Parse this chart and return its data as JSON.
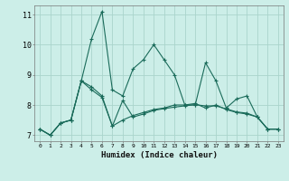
{
  "xlabel": "Humidex (Indice chaleur)",
  "bg_color": "#cceee8",
  "grid_color": "#aad4cc",
  "line_color": "#1a6b5a",
  "xlim": [
    -0.5,
    23.5
  ],
  "ylim": [
    6.8,
    11.3
  ],
  "yticks": [
    7,
    8,
    9,
    10,
    11
  ],
  "xticks": [
    0,
    1,
    2,
    3,
    4,
    5,
    6,
    7,
    8,
    9,
    10,
    11,
    12,
    13,
    14,
    15,
    16,
    17,
    18,
    19,
    20,
    21,
    22,
    23
  ],
  "series1": {
    "x": [
      0,
      1,
      2,
      3,
      4,
      5,
      6,
      7,
      8,
      9,
      10,
      11,
      12,
      13,
      14,
      15,
      16,
      17,
      18,
      19,
      20,
      21,
      22,
      23
    ],
    "y": [
      7.2,
      7.0,
      7.4,
      7.5,
      8.8,
      10.2,
      11.1,
      8.5,
      8.3,
      9.2,
      9.5,
      10.0,
      9.5,
      9.0,
      8.0,
      8.0,
      9.4,
      8.8,
      7.9,
      8.2,
      8.3,
      7.6,
      7.2,
      7.2
    ]
  },
  "series2": {
    "x": [
      0,
      1,
      2,
      3,
      4,
      5,
      6,
      7,
      8,
      9,
      10,
      11,
      12,
      13,
      14,
      15,
      16,
      17,
      18,
      19,
      20,
      21,
      22,
      23
    ],
    "y": [
      7.2,
      7.0,
      7.4,
      7.5,
      8.8,
      8.6,
      8.3,
      7.3,
      7.5,
      7.65,
      7.75,
      7.85,
      7.9,
      8.0,
      8.0,
      8.05,
      7.9,
      8.0,
      7.85,
      7.75,
      7.7,
      7.6,
      7.2,
      7.2
    ]
  },
  "series3": {
    "x": [
      0,
      1,
      2,
      3,
      4,
      5,
      6,
      7,
      8,
      9,
      10,
      11,
      12,
      13,
      14,
      15,
      16,
      17,
      18,
      19,
      20,
      21,
      22,
      23
    ],
    "y": [
      7.2,
      7.0,
      7.4,
      7.5,
      8.8,
      8.5,
      8.25,
      7.3,
      8.15,
      7.6,
      7.7,
      7.82,
      7.88,
      7.93,
      7.97,
      8.01,
      7.97,
      7.97,
      7.87,
      7.77,
      7.73,
      7.6,
      7.2,
      7.2
    ]
  }
}
